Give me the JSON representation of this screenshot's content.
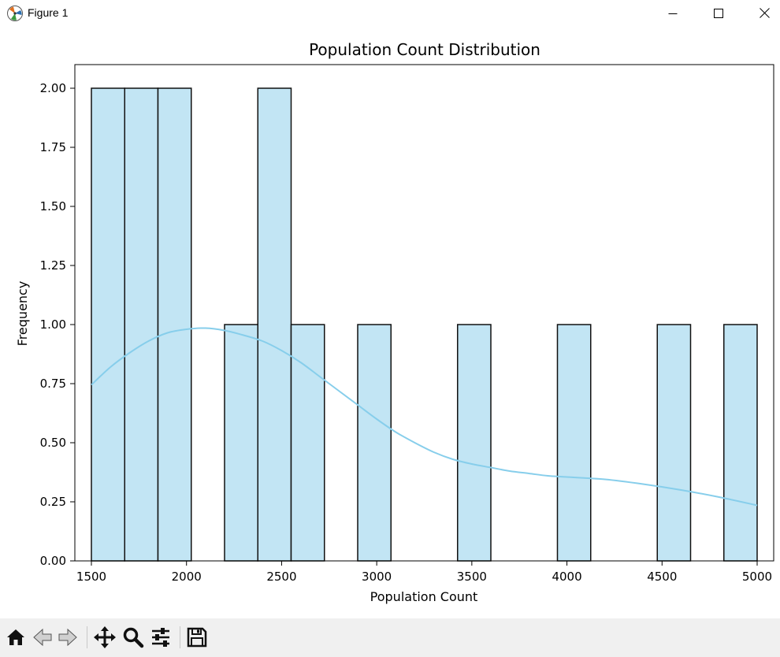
{
  "window": {
    "title": "Figure 1"
  },
  "toolbar": {
    "tools": [
      {
        "name": "home-icon"
      },
      {
        "name": "back-arrow-icon"
      },
      {
        "name": "forward-arrow-icon"
      },
      {
        "name": "pan-icon"
      },
      {
        "name": "zoom-icon"
      },
      {
        "name": "configure-subplots-icon"
      },
      {
        "name": "save-icon"
      }
    ]
  },
  "colors": {
    "bar_fill": "#c2e5f4",
    "bar_edge": "#111111",
    "kde_line": "#87ceeb",
    "axes": "#000000"
  },
  "chart_data": {
    "type": "bar",
    "title": "Population Count Distribution",
    "xlabel": "Population Count",
    "ylabel": "Frequency",
    "xlim": [
      1413,
      5087
    ],
    "ylim": [
      0,
      2.1
    ],
    "xticks": [
      1500,
      2000,
      2500,
      3000,
      3500,
      4000,
      4500,
      5000
    ],
    "yticks": [
      "0.00",
      "0.25",
      "0.50",
      "0.75",
      "1.00",
      "1.25",
      "1.50",
      "1.75",
      "2.00"
    ],
    "bins": [
      {
        "start": 1500,
        "end": 1675,
        "count": 2
      },
      {
        "start": 1675,
        "end": 1850,
        "count": 2
      },
      {
        "start": 1850,
        "end": 2025,
        "count": 2
      },
      {
        "start": 2025,
        "end": 2200,
        "count": 0
      },
      {
        "start": 2200,
        "end": 2375,
        "count": 1
      },
      {
        "start": 2375,
        "end": 2550,
        "count": 2
      },
      {
        "start": 2550,
        "end": 2725,
        "count": 1
      },
      {
        "start": 2725,
        "end": 2900,
        "count": 0
      },
      {
        "start": 2900,
        "end": 3075,
        "count": 1
      },
      {
        "start": 3075,
        "end": 3250,
        "count": 0
      },
      {
        "start": 3250,
        "end": 3425,
        "count": 0
      },
      {
        "start": 3425,
        "end": 3600,
        "count": 1
      },
      {
        "start": 3600,
        "end": 3775,
        "count": 0
      },
      {
        "start": 3775,
        "end": 3950,
        "count": 0
      },
      {
        "start": 3950,
        "end": 4125,
        "count": 1
      },
      {
        "start": 4125,
        "end": 4300,
        "count": 0
      },
      {
        "start": 4300,
        "end": 4475,
        "count": 0
      },
      {
        "start": 4475,
        "end": 4650,
        "count": 1
      },
      {
        "start": 4650,
        "end": 4825,
        "count": 0
      },
      {
        "start": 4825,
        "end": 5000,
        "count": 1
      }
    ],
    "kde": {
      "x": [
        1500,
        1600,
        1700,
        1800,
        1900,
        2000,
        2100,
        2200,
        2300,
        2400,
        2500,
        2600,
        2700,
        2800,
        2900,
        3000,
        3100,
        3200,
        3300,
        3400,
        3500,
        3600,
        3700,
        3800,
        3900,
        4000,
        4200,
        4400,
        4600,
        4800,
        5000
      ],
      "y": [
        0.745,
        0.82,
        0.88,
        0.93,
        0.965,
        0.98,
        0.985,
        0.975,
        0.955,
        0.93,
        0.89,
        0.84,
        0.78,
        0.72,
        0.66,
        0.6,
        0.545,
        0.5,
        0.46,
        0.43,
        0.41,
        0.395,
        0.38,
        0.37,
        0.36,
        0.355,
        0.345,
        0.325,
        0.3,
        0.27,
        0.235
      ]
    }
  }
}
